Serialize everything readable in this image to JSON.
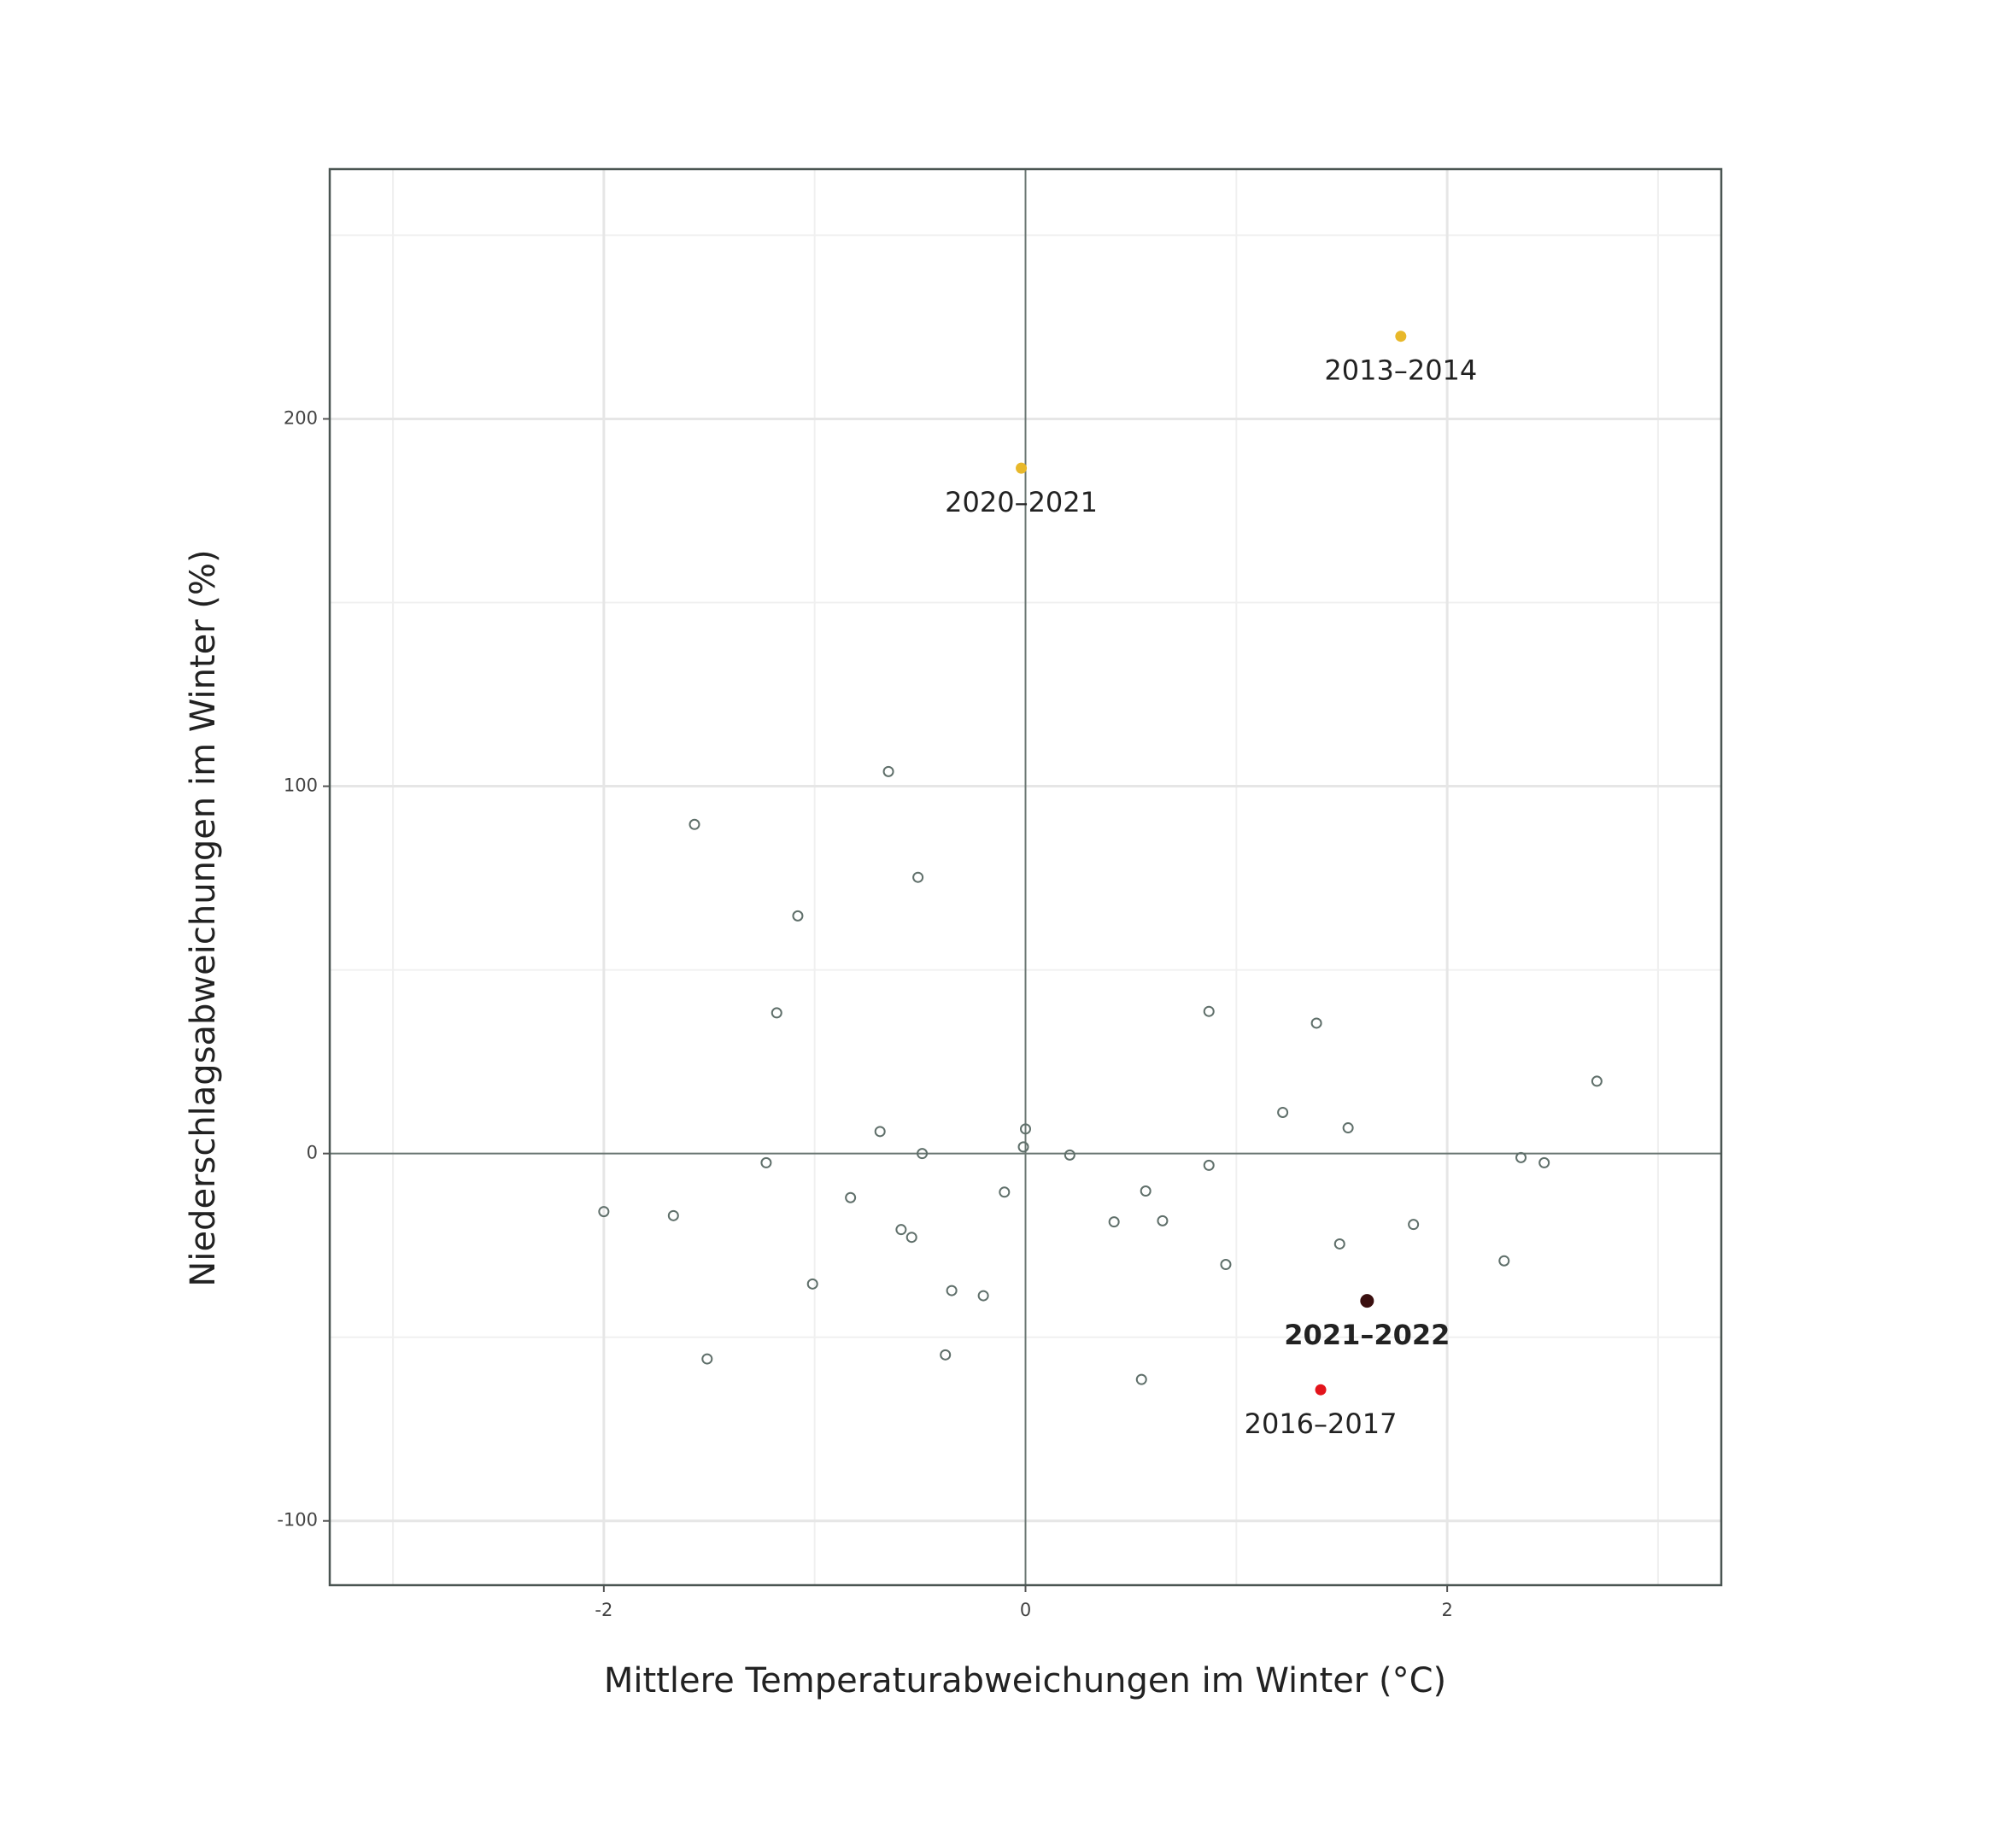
{
  "chart_data": {
    "type": "scatter",
    "x_label": "Mittlere Temperaturabweichungen im Winter (°C)",
    "y_label": "Niederschlagsabweichungen im Winter (%)",
    "x": [
      -0.65,
      -1.57,
      -0.51,
      -1.08,
      -1.18,
      0.87,
      1.38,
      2.71,
      1.22,
      -0.69,
      0.0,
      1.53,
      -0.01,
      -0.49,
      0.21,
      -1.23,
      0.87,
      2.35,
      2.46,
      0.57,
      -0.1,
      -0.83,
      -2.0,
      -1.67,
      0.42,
      0.65,
      1.84,
      -0.59,
      -0.54,
      1.49,
      2.27,
      0.95,
      -1.01,
      -0.35,
      -0.2,
      -0.38,
      -1.51,
      0.55
    ],
    "y": [
      104,
      89.6,
      75.2,
      64.7,
      38.3,
      38.7,
      35.5,
      19.7,
      11.2,
      6.0,
      6.7,
      7.0,
      1.8,
      0,
      -0.4,
      -2.5,
      -3.2,
      -1.1,
      -2.5,
      -10.2,
      -10.5,
      -12.0,
      -15.8,
      -16.9,
      -18.6,
      -18.3,
      -19.3,
      -20.7,
      -22.8,
      -24.6,
      -29.2,
      -30.2,
      -35.5,
      -37.3,
      -38.7,
      -54.8,
      -55.9,
      -61.5
    ],
    "point_color": "#5f6f6a",
    "highlights": [
      {
        "label": "2013–2014",
        "x": 1.78,
        "y": 222.5,
        "color": "#e8b82a",
        "bold": false
      },
      {
        "label": "2020–2021",
        "x": -0.02,
        "y": 186.6,
        "color": "#e8b82a",
        "bold": false
      },
      {
        "label": "2021–2022",
        "x": 1.62,
        "y": -40.1,
        "color": "#3a0f0f",
        "bold": true
      },
      {
        "label": "2016–2017",
        "x": 1.4,
        "y": -64.3,
        "color": "#e3141b",
        "bold": false
      }
    ],
    "xlim": [
      -3.3,
      3.3
    ],
    "ylim": [
      -117.5,
      268
    ],
    "xticks": [
      -2,
      0,
      2
    ],
    "yticks": [
      -100,
      0,
      100,
      200
    ],
    "minor_xticks": [
      -3,
      -1,
      1,
      3
    ],
    "minor_yticks": [
      -50,
      50,
      150,
      250
    ],
    "grid": true
  }
}
